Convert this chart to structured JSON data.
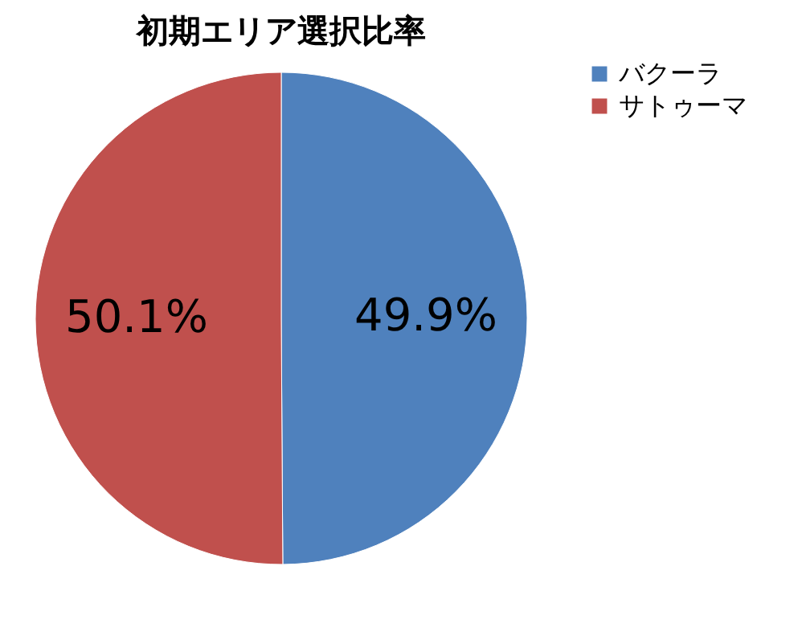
{
  "chart_data": {
    "type": "pie",
    "title": "初期エリア選択比率",
    "categories": [
      "バクーラ",
      "サトゥーマ"
    ],
    "values": [
      49.9,
      50.1
    ],
    "colors": [
      "#4f81bd",
      "#c0504d"
    ],
    "value_labels": [
      "49.9%",
      "50.1%"
    ],
    "legend": "right"
  }
}
